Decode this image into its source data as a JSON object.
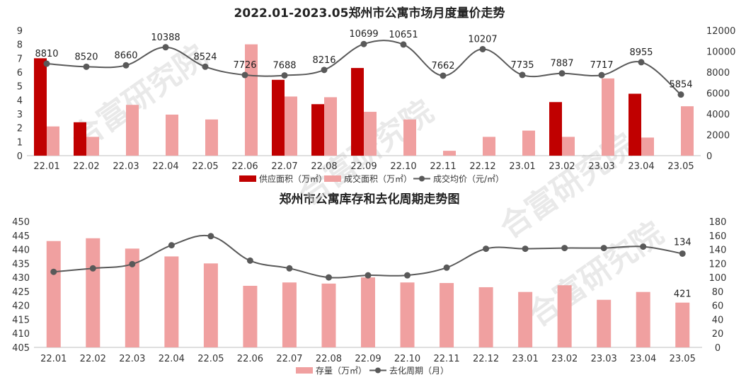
{
  "colors": {
    "supply": "#c00000",
    "deal_area": "#f0a0a0",
    "line": "#595959",
    "inventory": "#f0a0a0",
    "axis_text": "#333333",
    "watermark": "#d8d8d8"
  },
  "watermark_text": "合富研究院",
  "chart_data": [
    {
      "type": "bar+line",
      "title": "2022.01-2023.05郑州市公寓市场月度量价走势",
      "categories": [
        "22.01",
        "22.02",
        "22.03",
        "22.04",
        "22.05",
        "22.06",
        "22.07",
        "22.08",
        "22.09",
        "22.10",
        "22.11",
        "22.12",
        "23.01",
        "23.02",
        "23.03",
        "23.04",
        "23.05"
      ],
      "series": [
        {
          "name": "供应面积（万㎡）",
          "kind": "bar",
          "axis": "left",
          "values": [
            7.0,
            2.4,
            0,
            0,
            0,
            0,
            5.45,
            3.7,
            6.3,
            0,
            0,
            0,
            0,
            3.85,
            0,
            4.45,
            0
          ]
        },
        {
          "name": "成交面积（万㎡）",
          "kind": "bar",
          "axis": "left",
          "values": [
            2.1,
            1.35,
            3.65,
            2.95,
            2.6,
            8.0,
            4.25,
            4.2,
            3.15,
            2.6,
            0.35,
            1.35,
            1.8,
            1.35,
            5.55,
            1.3,
            3.55
          ]
        },
        {
          "name": "成交均价（元/㎡）",
          "kind": "line",
          "axis": "right",
          "values": [
            8810,
            8520,
            8660,
            10388,
            8524,
            7726,
            7688,
            8216,
            10699,
            10651,
            7662,
            10207,
            7735,
            7887,
            7717,
            8955,
            5854
          ]
        }
      ],
      "ylim_left": [
        0,
        9
      ],
      "yticks_left": [
        "0",
        "1",
        "2",
        "3",
        "4",
        "5",
        "6",
        "7",
        "8",
        "9"
      ],
      "ylim_right": [
        0,
        12000
      ],
      "yticks_right": [
        "0",
        "2000",
        "4000",
        "6000",
        "8000",
        "10000",
        "12000"
      ],
      "legend": [
        "供应面积（万㎡）",
        "成交面积（万㎡）",
        "成交均价（元/㎡）"
      ],
      "legend_position": "bottom"
    },
    {
      "type": "bar+line",
      "title": "郑州市公寓库存和去化周期走势图",
      "categories": [
        "22.01",
        "22.02",
        "22.03",
        "22.04",
        "22.05",
        "22.06",
        "22.07",
        "22.08",
        "22.09",
        "22.10",
        "22.11",
        "22.12",
        "23.01",
        "23.02",
        "23.03",
        "23.04",
        "23.05"
      ],
      "series": [
        {
          "name": "存量（万㎡）",
          "kind": "bar",
          "axis": "left",
          "values": [
            443,
            444,
            440.3,
            437.5,
            435,
            427,
            428.2,
            427.8,
            430,
            428.2,
            428,
            426.5,
            424.8,
            427.2,
            422,
            424.8,
            421
          ],
          "labels": [
            "",
            "",
            "",
            "",
            "",
            "",
            "",
            "",
            "",
            "",
            "",
            "",
            "",
            "",
            "",
            "",
            "421"
          ]
        },
        {
          "name": "去化周期（月）",
          "kind": "line",
          "axis": "right",
          "values": [
            108,
            113,
            119,
            146,
            159,
            124,
            113,
            100,
            103,
            103,
            114,
            141,
            141,
            142,
            142,
            144,
            134
          ],
          "labels": [
            "",
            "",
            "",
            "",
            "",
            "",
            "",
            "",
            "",
            "",
            "",
            "",
            "",
            "",
            "",
            "",
            "134"
          ]
        }
      ],
      "ylim_left": [
        405,
        450
      ],
      "yticks_left": [
        "405",
        "410",
        "415",
        "420",
        "425",
        "430",
        "435",
        "440",
        "445",
        "450"
      ],
      "ylim_right": [
        0,
        180
      ],
      "yticks_right": [
        "0",
        "20",
        "40",
        "60",
        "80",
        "100",
        "120",
        "140",
        "160",
        "180"
      ],
      "legend": [
        "存量（万㎡）",
        "去化周期（月）"
      ],
      "legend_position": "bottom"
    }
  ]
}
